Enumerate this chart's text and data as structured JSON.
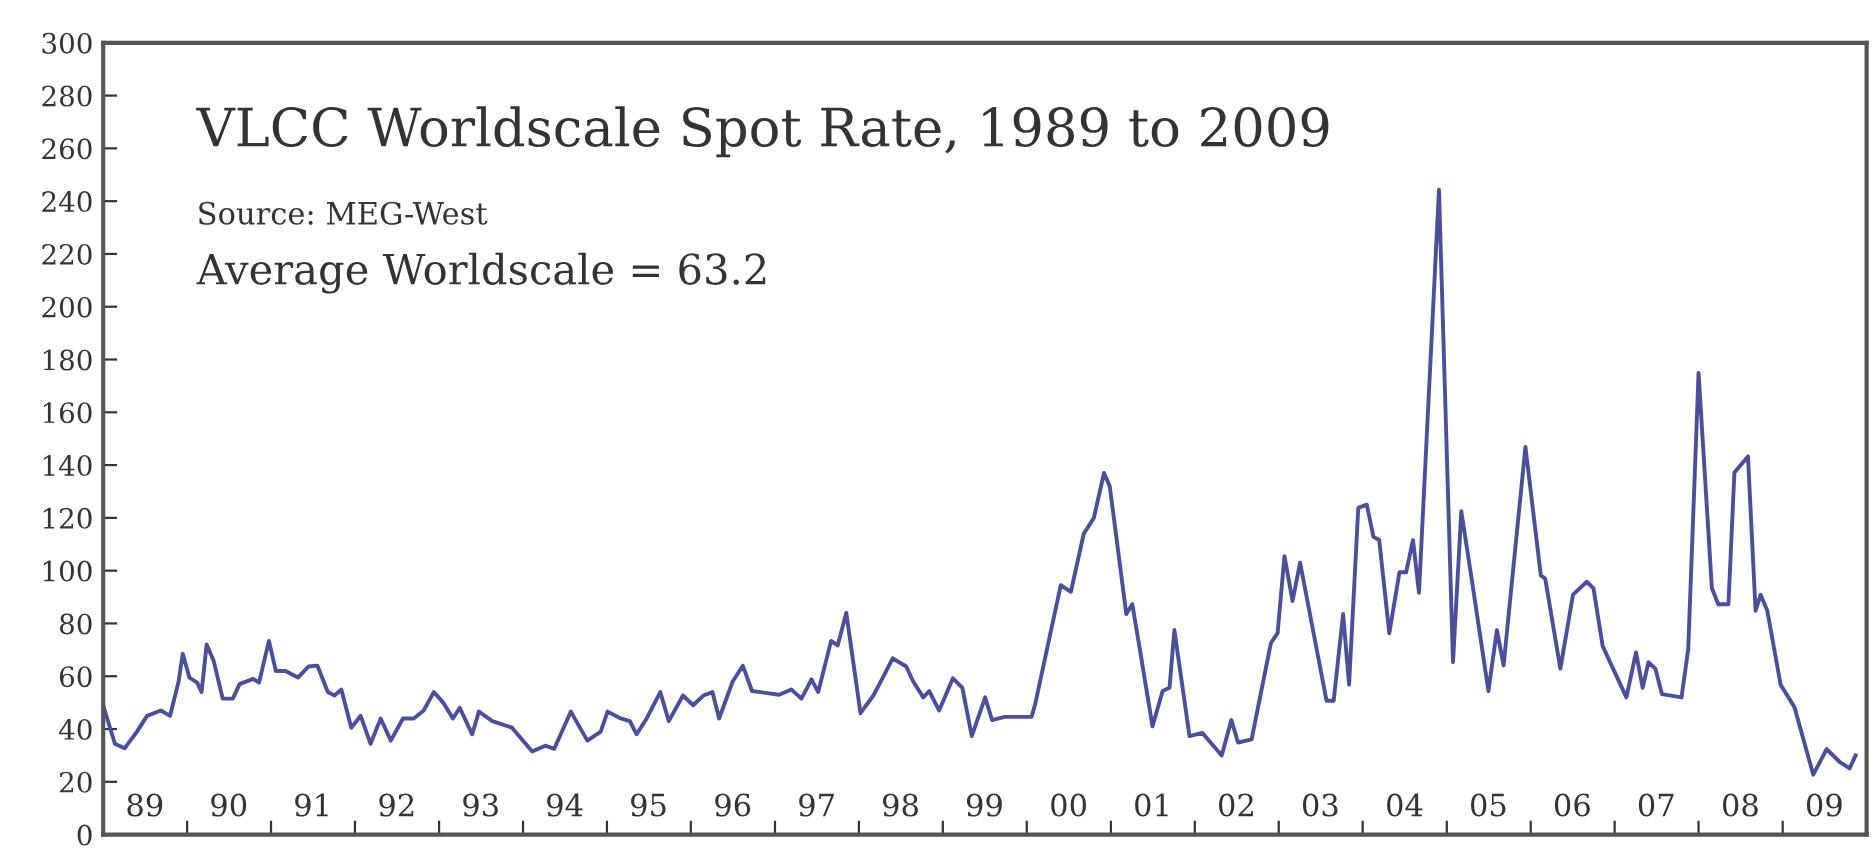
{
  "chart_data": {
    "type": "line",
    "title": "VLCC Worldscale Spot Rate, 1989 to 2009",
    "annotations": [
      "Source: MEG-West",
      "Average Worldscale = 63.2"
    ],
    "x": [
      "1989-01-01",
      "1989-02-21",
      "1989-04-04",
      "1989-05-28",
      "1989-07-11",
      "1989-09-09",
      "1989-10-19",
      "1989-11-25",
      "1989-12-13",
      "1990-01-11",
      "1990-02-14",
      "1990-03-05",
      "1990-03-27",
      "1990-04-26",
      "1990-06-05",
      "1990-07-19",
      "1990-08-17",
      "1990-10-15",
      "1990-11-10",
      "1990-12-23",
      "1991-01-22",
      "1991-03-05",
      "1991-04-28",
      "1991-06-13",
      "1991-07-22",
      "1991-09-05",
      "1991-10-04",
      "1991-11-03",
      "1991-12-16",
      "1992-01-26",
      "1992-03-09",
      "1992-04-22",
      "1992-06-05",
      "1992-07-28",
      "1992-09-13",
      "1992-10-26",
      "1992-12-09",
      "1993-01-19",
      "1993-03-02",
      "1993-04-01",
      "1993-05-25",
      "1993-06-23",
      "1993-08-21",
      "1993-11-14",
      "1994-02-10",
      "1994-04-08",
      "1994-05-17",
      "1994-07-28",
      "1994-10-08",
      "1994-12-05",
      "1995-01-04",
      "1995-03-02",
      "1995-04-11",
      "1995-05-10",
      "1995-06-23",
      "1995-08-21",
      "1995-09-27",
      "1995-11-28",
      "1996-01-11",
      "1996-02-25",
      "1996-04-04",
      "1996-05-03",
      "1996-07-01",
      "1996-08-14",
      "1996-09-23",
      "1997-01-19",
      "1997-03-13",
      "1997-04-26",
      "1997-06-09",
      "1997-07-08",
      "1997-09-02",
      "1997-10-01",
      "1997-11-07",
      "1998-01-08",
      "1998-03-05",
      "1998-04-15",
      "1998-05-28",
      "1998-07-26",
      "1998-08-25",
      "1998-10-08",
      "1998-11-03",
      "1998-12-16",
      "1999-02-14",
      "1999-03-27",
      "1999-05-07",
      "1999-07-04",
      "1999-08-03",
      "1999-09-27",
      "2000-01-22",
      "2000-02-07",
      "2000-05-28",
      "2000-07-11",
      "2000-09-05",
      "2000-10-19",
      "2000-12-02",
      "2000-12-27",
      "2001-03-09",
      "2001-04-04",
      "2001-05-07",
      "2001-07-01",
      "2001-08-14",
      "2001-09-13",
      "2001-10-04",
      "2001-12-09",
      "2002-02-03",
      "2002-04-28",
      "2002-06-09",
      "2002-07-08",
      "2002-09-05",
      "2002-11-28",
      "2002-12-27",
      "2003-01-26",
      "2003-03-02",
      "2003-04-04",
      "2003-07-28",
      "2003-08-28",
      "2003-10-08",
      "2003-11-03",
      "2003-12-13",
      "2004-01-19",
      "2004-02-17",
      "2004-03-13",
      "2004-04-26",
      "2004-06-09",
      "2004-07-08",
      "2004-08-07",
      "2004-09-02",
      "2004-11-28",
      "2005-01-28",
      "2005-03-05",
      "2005-04-19",
      "2005-07-01",
      "2005-08-07",
      "2005-09-05",
      "2005-12-09",
      "2006-02-14",
      "2006-03-05",
      "2006-05-10",
      "2006-07-04",
      "2006-09-02",
      "2006-10-01",
      "2006-11-10",
      "2007-02-21",
      "2007-04-04",
      "2007-05-03",
      "2007-05-28",
      "2007-06-27",
      "2007-07-26",
      "2007-10-19",
      "2007-11-17",
      "2008-01-01",
      "2008-02-28",
      "2008-03-27",
      "2008-05-10",
      "2008-06-05",
      "2008-08-03",
      "2008-09-05",
      "2008-09-27",
      "2008-10-26",
      "2008-12-23",
      "2009-02-21",
      "2009-05-14",
      "2009-07-11",
      "2009-09-05",
      "2009-10-19",
      "2009-11-14"
    ],
    "values": [
      49,
      34.4,
      32.7,
      39,
      45,
      47,
      45,
      58,
      68.5,
      59.5,
      57.6,
      54,
      72,
      66,
      51.5,
      51.5,
      57,
      59,
      57.6,
      73.4,
      62,
      62,
      59.5,
      63.7,
      64,
      54,
      52.7,
      55,
      40.5,
      45,
      34.4,
      44,
      35.6,
      44,
      44,
      47,
      54,
      50,
      44,
      48,
      38,
      46.6,
      43,
      40.5,
      31.5,
      33.7,
      32.5,
      46.6,
      35.6,
      39,
      46.6,
      44,
      43,
      38,
      44,
      54,
      43,
      52.7,
      49,
      52.7,
      54,
      44,
      58,
      64,
      54.4,
      53,
      55,
      51.5,
      58.8,
      54,
      73.4,
      71.7,
      84,
      46,
      52.7,
      59.5,
      66.8,
      63.7,
      58,
      52,
      54.4,
      47,
      59.2,
      55.6,
      37.3,
      52,
      43.4,
      44.6,
      44.6,
      49.5,
      94.5,
      92,
      114,
      120,
      137,
      132,
      83.6,
      87.3,
      70.2,
      41,
      54.4,
      55.6,
      77.5,
      37.3,
      38.5,
      30,
      43.4,
      34.9,
      36.1,
      72.6,
      76.3,
      105.5,
      88.5,
      103,
      50.7,
      50.7,
      83.6,
      56.8,
      123.8,
      125,
      112.8,
      111.6,
      76.3,
      99.4,
      99.4,
      111.6,
      91.6,
      244.3,
      65.3,
      122.5,
      97,
      54.4,
      77.5,
      64.1,
      146.9,
      98.2,
      97,
      62.9,
      90.9,
      95.8,
      93.3,
      71.4,
      52,
      69,
      55.6,
      65.3,
      62.9,
      53.2,
      52,
      70.2,
      174.9,
      93.3,
      87.3,
      87.3,
      137.2,
      143.3,
      84.8,
      90.9,
      84.8,
      56.8,
      48.3,
      22.7,
      32.4,
      27.6,
      25.1,
      30
    ],
    "color": "#4a4e9e",
    "marker": "none",
    "line_style": "solid",
    "grid": false,
    "legend": false,
    "xlim": [
      "1989-01-01",
      "2010-01-01"
    ],
    "xticks": [
      {
        "value": "1989-07-01",
        "label": "89"
      },
      {
        "value": "1990-01-01",
        "label": null
      },
      {
        "value": "1990-07-01",
        "label": "90"
      },
      {
        "value": "1991-01-01",
        "label": null
      },
      {
        "value": "1991-07-01",
        "label": "91"
      },
      {
        "value": "1992-01-01",
        "label": null
      },
      {
        "value": "1992-07-01",
        "label": "92"
      },
      {
        "value": "1993-01-01",
        "label": null
      },
      {
        "value": "1993-07-01",
        "label": "93"
      },
      {
        "value": "1994-01-01",
        "label": null
      },
      {
        "value": "1994-07-01",
        "label": "94"
      },
      {
        "value": "1995-01-01",
        "label": null
      },
      {
        "value": "1995-07-01",
        "label": "95"
      },
      {
        "value": "1996-01-01",
        "label": null
      },
      {
        "value": "1996-07-01",
        "label": "96"
      },
      {
        "value": "1997-01-01",
        "label": null
      },
      {
        "value": "1997-07-01",
        "label": "97"
      },
      {
        "value": "1998-01-01",
        "label": null
      },
      {
        "value": "1998-07-01",
        "label": "98"
      },
      {
        "value": "1999-01-01",
        "label": null
      },
      {
        "value": "1999-07-01",
        "label": "99"
      },
      {
        "value": "2000-01-01",
        "label": null
      },
      {
        "value": "2000-07-01",
        "label": "00"
      },
      {
        "value": "2001-01-01",
        "label": null
      },
      {
        "value": "2001-07-01",
        "label": "01"
      },
      {
        "value": "2002-01-01",
        "label": null
      },
      {
        "value": "2002-07-01",
        "label": "02"
      },
      {
        "value": "2003-01-01",
        "label": null
      },
      {
        "value": "2003-07-01",
        "label": "03"
      },
      {
        "value": "2004-01-01",
        "label": null
      },
      {
        "value": "2004-07-01",
        "label": "04"
      },
      {
        "value": "2005-01-01",
        "label": null
      },
      {
        "value": "2005-07-01",
        "label": "05"
      },
      {
        "value": "2006-01-01",
        "label": null
      },
      {
        "value": "2006-07-01",
        "label": "06"
      },
      {
        "value": "2007-01-01",
        "label": null
      },
      {
        "value": "2007-07-01",
        "label": "07"
      },
      {
        "value": "2008-01-01",
        "label": null
      },
      {
        "value": "2008-07-01",
        "label": "08"
      },
      {
        "value": "2009-01-01",
        "label": null
      },
      {
        "value": "2009-07-01",
        "label": "09"
      }
    ],
    "ylim": [
      0,
      300
    ],
    "yticks": [
      0,
      20,
      40,
      60,
      80,
      100,
      120,
      140,
      160,
      180,
      200,
      220,
      240,
      260,
      280,
      300
    ]
  }
}
